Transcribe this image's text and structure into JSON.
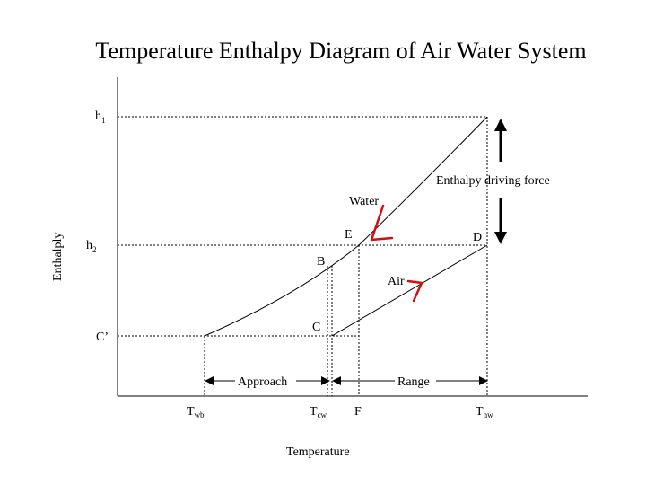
{
  "title": "Temperature Enthalpy Diagram of Air Water System",
  "axis": {
    "x_label": "Temperature",
    "y_label": "Enthalply"
  },
  "y_levels": {
    "h1": {
      "main": "h",
      "sub": "1"
    },
    "h2": {
      "main": "h",
      "sub": "2"
    },
    "c_prime": "C’"
  },
  "x_levels": {
    "twb": {
      "main": "T",
      "sub": "wb"
    },
    "tcw": {
      "main": "T",
      "sub": "cw"
    },
    "f": "F",
    "thw": {
      "main": "T",
      "sub": "hw"
    }
  },
  "lines": {
    "water": "Water",
    "air": "Air"
  },
  "points": {
    "e": "E",
    "d": "D",
    "b": "B",
    "c": "C"
  },
  "annotations": {
    "driving_force": "Enthalpy driving force",
    "approach": "Approach",
    "range": "Range"
  },
  "colors": {
    "line": "#000000",
    "handwriting": "#d01010"
  }
}
